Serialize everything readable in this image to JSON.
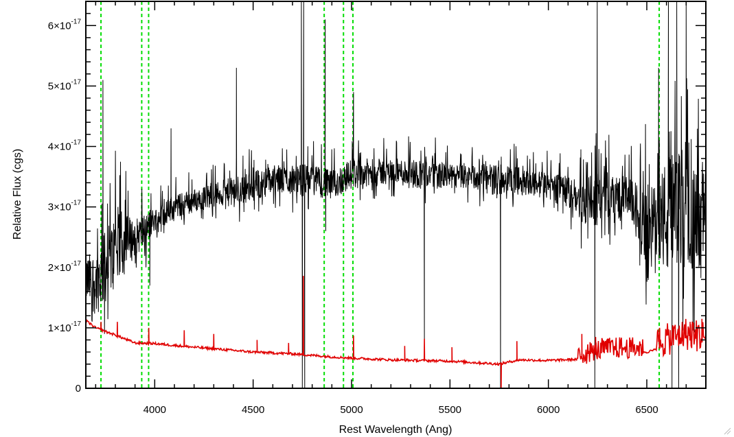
{
  "chart_data": {
    "type": "line",
    "xlabel": "Rest Wavelength (Ang)",
    "ylabel": "Relative Flux (cgs)",
    "xlim": [
      3650,
      6800
    ],
    "ylim": [
      0,
      6.4e-17
    ],
    "x_ticks": [
      {
        "value": 4000,
        "label": "4000"
      },
      {
        "value": 4500,
        "label": "4500"
      },
      {
        "value": 5000,
        "label": "5000"
      },
      {
        "value": 5500,
        "label": "5500"
      },
      {
        "value": 6000,
        "label": "6000"
      },
      {
        "value": 6500,
        "label": "6500"
      }
    ],
    "y_ticks": [
      {
        "value": 0,
        "mantissa": "0",
        "exponent": ""
      },
      {
        "value": 1e-17,
        "mantissa": "1×10",
        "exponent": "-17"
      },
      {
        "value": 2e-17,
        "mantissa": "2×10",
        "exponent": "-17"
      },
      {
        "value": 3e-17,
        "mantissa": "3×10",
        "exponent": "-17"
      },
      {
        "value": 4e-17,
        "mantissa": "4×10",
        "exponent": "-17"
      },
      {
        "value": 5e-17,
        "mantissa": "5×10",
        "exponent": "-17"
      },
      {
        "value": 6e-17,
        "mantissa": "6×10",
        "exponent": "-17"
      }
    ],
    "reference_lines_x": [
      3727,
      3934,
      3969,
      4861,
      4959,
      5007,
      6563
    ],
    "series": [
      {
        "color": "#000000",
        "envelope": [
          [
            3650,
            2.2e-17,
            1.4e-17
          ],
          [
            3700,
            2.3e-17,
            1.2e-17
          ],
          [
            3750,
            2.6e-17,
            1.4e-17
          ],
          [
            3800,
            2.9e-17,
            1.6e-17
          ],
          [
            3850,
            2.9e-17,
            1.9e-17
          ],
          [
            3900,
            2.8e-17,
            2.2e-17
          ],
          [
            3950,
            2.9e-17,
            2.3e-17
          ],
          [
            4000,
            3e-17,
            2.6e-17
          ],
          [
            4100,
            3.2e-17,
            2.8e-17
          ],
          [
            4200,
            3.3e-17,
            2.9e-17
          ],
          [
            4300,
            3.4e-17,
            3e-17
          ],
          [
            4400,
            3.5e-17,
            3e-17
          ],
          [
            4500,
            3.6e-17,
            3.1e-17
          ],
          [
            4600,
            3.7e-17,
            3.2e-17
          ],
          [
            4700,
            3.7e-17,
            3.2e-17
          ],
          [
            4800,
            3.7e-17,
            3.2e-17
          ],
          [
            4900,
            3.6e-17,
            3.1e-17
          ],
          [
            5000,
            3.8e-17,
            3.3e-17
          ],
          [
            5100,
            3.8e-17,
            3.3e-17
          ],
          [
            5200,
            3.8e-17,
            3.4e-17
          ],
          [
            5300,
            3.8e-17,
            3.3e-17
          ],
          [
            5400,
            3.8e-17,
            3.3e-17
          ],
          [
            5500,
            3.7e-17,
            3.3e-17
          ],
          [
            5600,
            3.7e-17,
            3.3e-17
          ],
          [
            5700,
            3.7e-17,
            3.2e-17
          ],
          [
            5800,
            3.7e-17,
            3.2e-17
          ],
          [
            5900,
            3.6e-17,
            3.2e-17
          ],
          [
            6000,
            3.6e-17,
            3.1e-17
          ],
          [
            6100,
            3.5e-17,
            3e-17
          ],
          [
            6150,
            3.4e-17,
            2.8e-17
          ],
          [
            6200,
            3.5e-17,
            2.6e-17
          ],
          [
            6300,
            3.6e-17,
            2.8e-17
          ],
          [
            6400,
            3.5e-17,
            2.8e-17
          ],
          [
            6450,
            3.4e-17,
            2.6e-17
          ],
          [
            6500,
            3.2e-17,
            1.6e-17
          ],
          [
            6550,
            3.5e-17,
            2.2e-17
          ],
          [
            6600,
            3.8e-17,
            1.8e-17
          ],
          [
            6650,
            3.9e-17,
            1.9e-17
          ],
          [
            6700,
            3.8e-17,
            2e-17
          ],
          [
            6750,
            3.6e-17,
            1.9e-17
          ],
          [
            6800,
            3.6e-17,
            2.2e-17
          ]
        ],
        "spikes": [
          [
            3737,
            5.1e-17
          ],
          [
            3745,
            9e-18
          ],
          [
            3975,
            1.7e-17
          ],
          [
            4083,
            4.3e-17
          ],
          [
            4415,
            5.3e-17
          ],
          [
            4745,
            6.4e-17
          ],
          [
            4750,
            0
          ],
          [
            4757,
            6.4e-17
          ],
          [
            4762,
            0
          ],
          [
            4866,
            6.1e-17
          ],
          [
            4869,
            2.6e-17
          ],
          [
            5010,
            4.9e-17
          ],
          [
            5370,
            8e-18
          ],
          [
            5757,
            0
          ],
          [
            6236,
            0
          ],
          [
            6248,
            6.4e-17
          ],
          [
            6560,
            5.3e-17
          ],
          [
            6610,
            6.4e-17
          ],
          [
            6628,
            0
          ],
          [
            6652,
            6.4e-17
          ],
          [
            6662,
            0
          ],
          [
            6700,
            6.4e-17
          ]
        ]
      },
      {
        "color": "#e00000",
        "continuum": [
          [
            3650,
            1.12e-17
          ],
          [
            3700,
            1e-17
          ],
          [
            3800,
            8.8e-18
          ],
          [
            3900,
            7.5e-18
          ],
          [
            4000,
            7.4e-18
          ],
          [
            4200,
            6.8e-18
          ],
          [
            4500,
            6e-18
          ],
          [
            4700,
            5.7e-18
          ],
          [
            4900,
            5.2e-18
          ],
          [
            5000,
            5e-18
          ],
          [
            5200,
            4.7e-18
          ],
          [
            5500,
            4.5e-18
          ],
          [
            5750,
            4e-18
          ],
          [
            5850,
            4.7e-18
          ],
          [
            6000,
            4.6e-18
          ],
          [
            6150,
            4.8e-18
          ],
          [
            6300,
            6e-18
          ],
          [
            6500,
            6e-18
          ],
          [
            6560,
            6.5e-18
          ],
          [
            6700,
            8e-18
          ],
          [
            6800,
            7.5e-18
          ]
        ],
        "features": [
          [
            3727,
            1.1e-17
          ],
          [
            3810,
            1.1e-17
          ],
          [
            3970,
            1e-17
          ],
          [
            4150,
            9.6e-18
          ],
          [
            4300,
            9e-18
          ],
          [
            4520,
            8e-18
          ],
          [
            4680,
            7.5e-18
          ],
          [
            4755,
            1.86e-17
          ],
          [
            5010,
            8.7e-18
          ],
          [
            5270,
            7e-18
          ],
          [
            5370,
            8.2e-18
          ],
          [
            5510,
            6.8e-18
          ],
          [
            5760,
            -1e-18
          ],
          [
            5840,
            7.8e-18
          ],
          [
            6170,
            9e-18
          ],
          [
            6240,
            8.5e-18
          ],
          [
            6300,
            8.2e-18
          ],
          [
            6420,
            7.5e-18
          ],
          [
            6565,
            1e-17
          ],
          [
            6620,
            9.5e-18
          ],
          [
            6720,
            1.1e-17
          ],
          [
            6780,
            1.15e-17
          ]
        ]
      }
    ]
  }
}
